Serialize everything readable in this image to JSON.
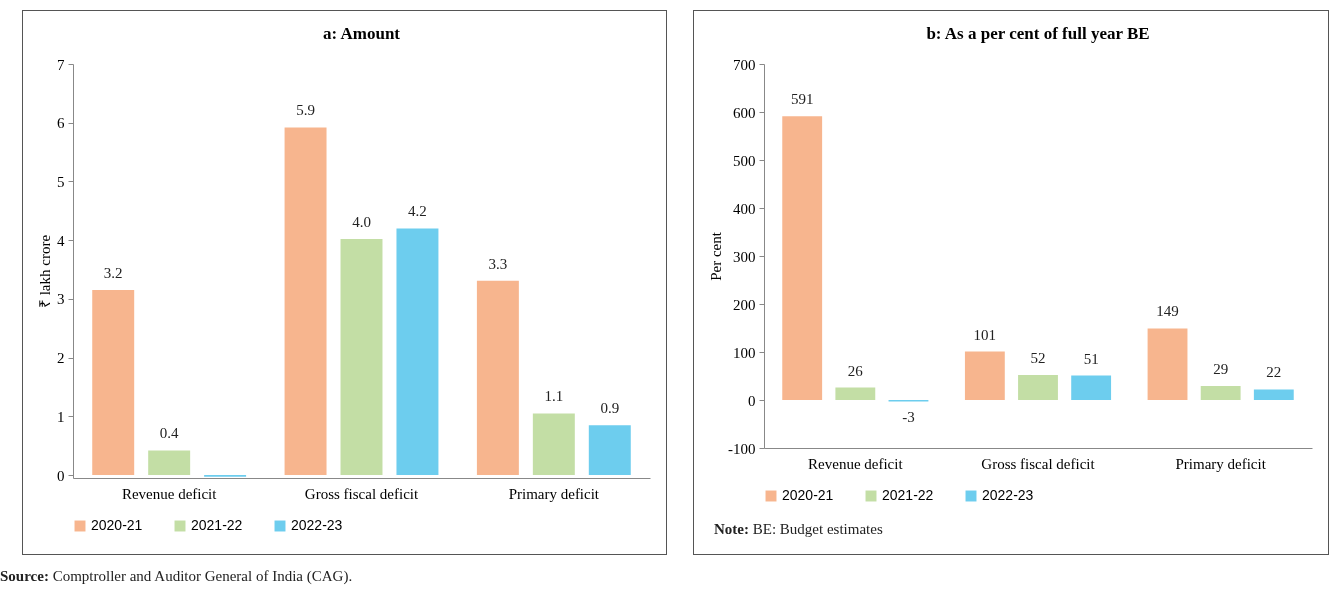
{
  "chart_data": [
    {
      "type": "bar",
      "title": "a: Amount",
      "ylabel": "₹ lakh crore",
      "categories": [
        "Revenue deficit",
        "Gross fiscal deficit",
        "Primary deficit"
      ],
      "series": [
        {
          "name": "2020-21",
          "color": "#f7b58e",
          "values": [
            3.15,
            5.92,
            3.31
          ],
          "value_labels": [
            "3.2",
            "5.9",
            "3.3"
          ]
        },
        {
          "name": "2021-22",
          "color": "#c3dea5",
          "values": [
            0.42,
            4.02,
            1.05
          ],
          "value_labels": [
            "0.4",
            "4.0",
            "1.1"
          ]
        },
        {
          "name": "2022-23",
          "color": "#6dcdee",
          "values": [
            -0.03,
            4.2,
            0.85
          ],
          "value_labels": [
            null,
            "4.2",
            "0.9"
          ]
        }
      ],
      "ylim": [
        -0.05,
        7
      ],
      "yticks": [
        0,
        1,
        2,
        3,
        4,
        5,
        6,
        7
      ],
      "grid": false,
      "legend": "bottom",
      "annotations": [
        "Source: Comptroller and Auditor General of India (CAG)."
      ]
    },
    {
      "type": "bar",
      "title": "b: As a per cent of full year BE",
      "ylabel": "Per cent",
      "categories": [
        "Revenue deficit",
        "Gross fiscal deficit",
        "Primary deficit"
      ],
      "series": [
        {
          "name": "2020-21",
          "color": "#f7b58e",
          "values": [
            591,
            101,
            149
          ]
        },
        {
          "name": "2021-22",
          "color": "#c3dea5",
          "values": [
            26,
            52,
            29
          ]
        },
        {
          "name": "2022-23",
          "color": "#6dcdee",
          "values": [
            -3,
            51,
            22
          ]
        }
      ],
      "ylim": [
        -100,
        700
      ],
      "yticks": [
        -100,
        0,
        100,
        200,
        300,
        400,
        500,
        600,
        700
      ],
      "grid": false,
      "legend": "bottom",
      "data_labels": true,
      "annotations": [
        "Note: BE: Budget estimates"
      ]
    }
  ]
}
